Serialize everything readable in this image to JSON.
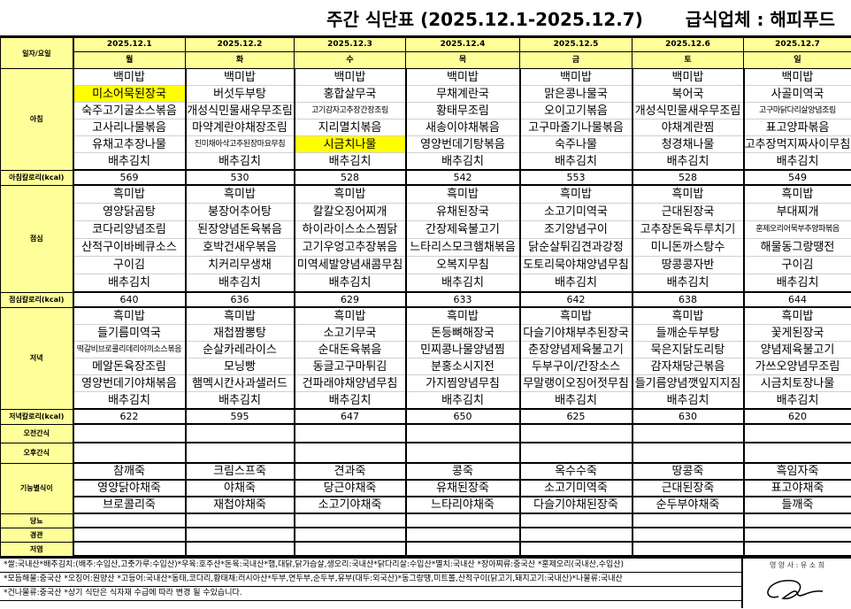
{
  "title": "주간 식단표 (2025.12.1-2025.12.7)",
  "vendor": "급식업체 : 해피푸드",
  "header_label": "일자/요일",
  "dates": [
    "2025.12.1",
    "2025.12.2",
    "2025.12.3",
    "2025.12.4",
    "2025.12.5",
    "2025.12.6",
    "2025.12.7"
  ],
  "weekdays": [
    "월",
    "화",
    "수",
    "목",
    "금",
    "토",
    "일"
  ],
  "highlight_color": "#ffff00",
  "meals": [
    {
      "label": "아침",
      "kcal_label": "아침칼로리(kcal)",
      "kcal": [
        "569",
        "530",
        "528",
        "542",
        "553",
        "528",
        "549"
      ],
      "days": [
        [
          "백미밥",
          "미소어묵된장국",
          "숙주고기굴소스볶음",
          "고사리나물볶음",
          "유채고추장나물",
          "배추김치"
        ],
        [
          "백미밥",
          "버섯두부탕",
          "개성식민물새우무조림",
          "마약계란야채장조림",
          "진미채아삭고추된장마요무침",
          "배추김치"
        ],
        [
          "백미밥",
          "홍합살무국",
          "고기감자고추장간장조림",
          "지리멸치볶음",
          "시금치나물",
          "배추김치"
        ],
        [
          "백미밥",
          "무채계란국",
          "황태무조림",
          "새송이야채볶음",
          "영양번데기탕볶음",
          "배추김치"
        ],
        [
          "백미밥",
          "맑은콩나물국",
          "오이고기볶음",
          "고구마줄기나물볶음",
          "숙주나물",
          "배추김치"
        ],
        [
          "백미밥",
          "북어국",
          "개성식민물새우무조림",
          "야채계란찜",
          "청경채나물",
          "배추김치"
        ],
        [
          "백미밥",
          "사골미역국",
          "고구마닭다리살양념조림",
          "표고양파볶음",
          "고추장먹지짜사이무침",
          "배추김치"
        ]
      ],
      "highlights": [
        [
          0,
          1
        ],
        [
          2,
          4
        ]
      ]
    },
    {
      "label": "점심",
      "kcal_label": "점심칼로리(kcal)",
      "kcal": [
        "640",
        "636",
        "629",
        "633",
        "642",
        "638",
        "644"
      ],
      "days": [
        [
          "흑미밥",
          "영양닭곰탕",
          "코다리양념조림",
          "산적구이바베큐소스",
          "구이김",
          "배추김치"
        ],
        [
          "흑미밥",
          "붕장어추어탕",
          "된장양념돈육볶음",
          "호박건새우볶음",
          "치커리무생채",
          "배추김치"
        ],
        [
          "흑미밥",
          "칼칼오징어찌개",
          "하이라이스소스찜닭",
          "고기우엉고추장볶음",
          "미역세발양념새콤무침",
          "배추김치"
        ],
        [
          "흑미밥",
          "유채된장국",
          "간장제육불고기",
          "느타리스모크햄채볶음",
          "오복지무침",
          "배추김치"
        ],
        [
          "흑미밥",
          "소고기미역국",
          "조기양념구이",
          "닭순살튀김견과강정",
          "도토리묵야채양념무침",
          "배추김치"
        ],
        [
          "흑미밥",
          "근대된장국",
          "고추장돈육두루치기",
          "미니돈까스탕수",
          "땅콩콩자반",
          "배추김치"
        ],
        [
          "흑미밥",
          "부대찌개",
          "훈제오리어묵부추양파볶음",
          "해물동그랑땡전",
          "구이김",
          "배추김치"
        ]
      ],
      "highlights": []
    },
    {
      "label": "저녁",
      "kcal_label": "저녁칼로리(kcal)",
      "kcal": [
        "622",
        "595",
        "647",
        "650",
        "625",
        "630",
        "620"
      ],
      "days": [
        [
          "흑미밥",
          "들기름미역국",
          "떡갈비브로콜리데리야끼소스볶음",
          "메알돈육장조림",
          "영양번데기야채볶음",
          "배추김치"
        ],
        [
          "흑미밥",
          "재첩짬뽕탕",
          "순살카레라이스",
          "모닝빵",
          "햄멕시칸사과샐러드",
          "배추김치"
        ],
        [
          "흑미밥",
          "소고기무국",
          "순대돈육볶음",
          "동글고구마튀김",
          "건파래야채양념무침",
          "배추김치"
        ],
        [
          "흑미밥",
          "돈등뼈해장국",
          "민찌콩나물양념찜",
          "분홍소시지전",
          "가지찜양념무침",
          "배추김치"
        ],
        [
          "흑미밥",
          "다슬기야채부추된장국",
          "춘장양념제육불고기",
          "두부구이/간장소스",
          "무말랭이오징어젓무침",
          "배추김치"
        ],
        [
          "흑미밥",
          "들깨순두부탕",
          "묵은지닭도리탕",
          "감자채당근볶음",
          "들기름양념깻잎지지짐",
          "배추김치"
        ],
        [
          "흑미밥",
          "꽃게된장국",
          "양념제육불고기",
          "가쓰오양념무조림",
          "시금치토장나물",
          "배추김치"
        ]
      ],
      "highlights": []
    }
  ],
  "snacks": {
    "am_label": "오전간식",
    "pm_label": "오후간식"
  },
  "functional": {
    "label": "기능별식이",
    "days": [
      [
        "참깨죽",
        "영양닭야채죽",
        "브로콜리죽"
      ],
      [
        "크림스프죽",
        "야채죽",
        "재첩야채죽"
      ],
      [
        "견과죽",
        "당근야채죽",
        "소고기야채죽"
      ],
      [
        "콩죽",
        "유채된장죽",
        "느타리야채죽"
      ],
      [
        "옥수수죽",
        "소고기미역죽",
        "다슬기야채된장죽"
      ],
      [
        "땅콩죽",
        "근대된장죽",
        "순두부야채죽"
      ],
      [
        "흑임자죽",
        "표고야채죽",
        "들깨죽"
      ]
    ]
  },
  "special_diets": [
    "당뇨",
    "경관",
    "저염"
  ],
  "notes": [
    "*쌀:국내산*배추김치:(배추:수입산,고춧가루:수입산)*우육:호주산*돈육:국내산*햄,대닭,닭가슴살,생오리:국내산*닭다리살:수입산*멸치:국내산 *장아찌류:중국산 *훈제오리(국내산,수입산)",
    "*모듬해물:중국산 *오징어:원양산 *고등어:국내산*동태,코다리,황태채:러시아산*두부,연두부,순두부,유부(대두:외국산)*동그랑땡,미트볼,산적구이(닭고기,돼지고기:국내산)*나물류:국내산",
    "*건나물류:중국산 *상기 식단은 식자재 수급에 따라 변경 될 수있습니다."
  ],
  "dietitian": "영 양 사 : 유 소 희"
}
